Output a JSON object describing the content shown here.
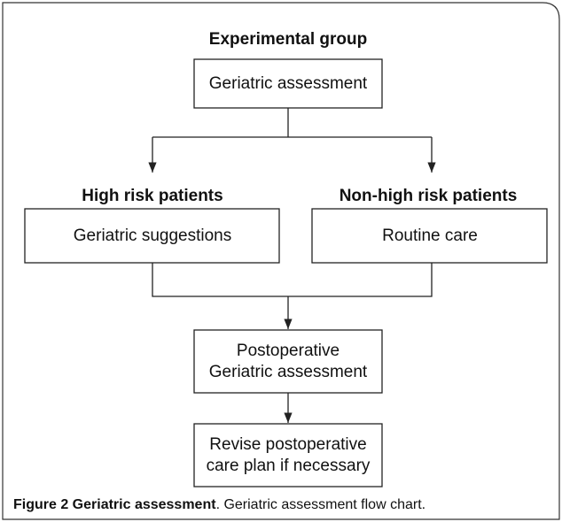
{
  "title": "Experimental group",
  "nodes": [
    {
      "lines": [
        "Geriatric assessment"
      ]
    },
    {
      "group": "High risk patients",
      "lines": [
        "Geriatric suggestions"
      ]
    },
    {
      "group": "Non-high risk patients",
      "lines": [
        "Routine care"
      ]
    },
    {
      "lines": [
        "Postoperative",
        "Geriatric assessment"
      ]
    },
    {
      "lines": [
        "Revise postoperative",
        "care plan if necessary"
      ]
    }
  ],
  "caption": {
    "label": "Figure 2 Geriatric assessment",
    "text": ". Geriatric assessment flow chart."
  }
}
